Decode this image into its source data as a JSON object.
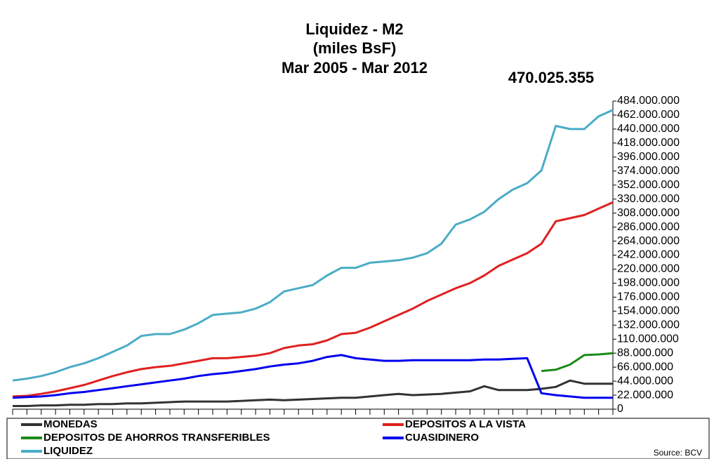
{
  "chart_data": {
    "type": "line",
    "title": "Liquidez - M2",
    "subtitle": [
      "(miles BsF)",
      "Mar 2005 - Mar 2012"
    ],
    "annotation": "470.025.355",
    "source": "Source: BCV",
    "categories": [
      null,
      null,
      null,
      null,
      null,
      null,
      null,
      null,
      null,
      null,
      null,
      null,
      null,
      null,
      null,
      null,
      null,
      null,
      null,
      null,
      null,
      null,
      null,
      null,
      null,
      null,
      null,
      null,
      null,
      null,
      null,
      null,
      null,
      null,
      null,
      null,
      null,
      null,
      null,
      null,
      null,
      null,
      null
    ],
    "series": [
      {
        "name": "MONEDAS",
        "color": "#333333",
        "values": [
          5000000,
          5000000,
          6000000,
          6000000,
          7000000,
          7000000,
          8000000,
          8000000,
          9000000,
          9000000,
          10000000,
          11000000,
          12000000,
          12000000,
          12000000,
          12000000,
          13000000,
          14000000,
          15000000,
          14000000,
          15000000,
          16000000,
          17000000,
          18000000,
          18000000,
          20000000,
          22000000,
          24000000,
          22000000,
          23000000,
          24000000,
          26000000,
          28000000,
          36000000,
          30000000,
          30000000,
          30000000,
          32000000,
          35000000,
          45000000,
          40000000,
          40000000,
          40000000
        ]
      },
      {
        "name": "DEPOSITOS A LA VISTA",
        "color": "#e02020",
        "values": [
          20000000,
          21000000,
          24000000,
          28000000,
          33000000,
          38000000,
          45000000,
          52000000,
          58000000,
          63000000,
          66000000,
          68000000,
          72000000,
          76000000,
          80000000,
          80000000,
          82000000,
          84000000,
          88000000,
          96000000,
          100000000,
          102000000,
          108000000,
          118000000,
          120000000,
          128000000,
          138000000,
          148000000,
          158000000,
          170000000,
          180000000,
          190000000,
          198000000,
          210000000,
          225000000,
          235000000,
          245000000,
          260000000,
          295000000,
          300000000,
          305000000,
          315000000,
          325000000
        ]
      },
      {
        "name": "DEPOSITOS DE AHORROS TRANSFERIBLES",
        "color": "#1a8a1a",
        "values": [
          null,
          null,
          null,
          null,
          null,
          null,
          null,
          null,
          null,
          null,
          null,
          null,
          null,
          null,
          null,
          null,
          null,
          null,
          null,
          null,
          null,
          null,
          null,
          null,
          null,
          null,
          null,
          null,
          null,
          null,
          null,
          null,
          null,
          null,
          null,
          null,
          null,
          60000000,
          62000000,
          70000000,
          85000000,
          86000000,
          88000000
        ]
      },
      {
        "name": "CUASIDINERO",
        "color": "#0000ee",
        "values": [
          18000000,
          19000000,
          20000000,
          22000000,
          25000000,
          27000000,
          30000000,
          33000000,
          36000000,
          39000000,
          42000000,
          45000000,
          48000000,
          52000000,
          55000000,
          57000000,
          60000000,
          63000000,
          67000000,
          70000000,
          72000000,
          76000000,
          82000000,
          85000000,
          80000000,
          78000000,
          76000000,
          76000000,
          77000000,
          77000000,
          77000000,
          77000000,
          77000000,
          78000000,
          78000000,
          79000000,
          80000000,
          25000000,
          22000000,
          20000000,
          18000000,
          18000000,
          18000000
        ]
      },
      {
        "name": "LIQUIDEZ",
        "color": "#4bacc6",
        "values": [
          45000000,
          48000000,
          52000000,
          58000000,
          66000000,
          72000000,
          80000000,
          90000000,
          100000000,
          115000000,
          118000000,
          118000000,
          125000000,
          135000000,
          148000000,
          150000000,
          152000000,
          158000000,
          168000000,
          185000000,
          190000000,
          195000000,
          210000000,
          222000000,
          222000000,
          230000000,
          232000000,
          234000000,
          238000000,
          245000000,
          260000000,
          290000000,
          298000000,
          310000000,
          330000000,
          345000000,
          355000000,
          375000000,
          445000000,
          440000000,
          440000000,
          460000000,
          470025355
        ]
      }
    ],
    "ylim": [
      0,
      484000000
    ],
    "yticks": [
      0,
      {
        "value": 22000000,
        "label": "22.000.000"
      },
      {
        "value": 44000000,
        "label": "44.000.000"
      },
      {
        "value": 66000000,
        "label": "66.000.000"
      },
      {
        "value": 88000000,
        "label": "88.000.000"
      },
      {
        "value": 110000000,
        "label": "110.000.000"
      },
      {
        "value": 132000000,
        "label": "132.000.000"
      },
      {
        "value": 154000000,
        "label": "154.000.000"
      },
      {
        "value": 176000000,
        "label": "176.000.000"
      },
      {
        "value": 198000000,
        "label": "198.000.000"
      },
      {
        "value": 220000000,
        "label": "220.000.000"
      },
      {
        "value": 242000000,
        "label": "242.000.000"
      },
      {
        "value": 264000000,
        "label": "264.000.000"
      },
      {
        "value": 286000000,
        "label": "286.000.000"
      },
      {
        "value": 308000000,
        "label": "308.000.000"
      },
      {
        "value": 330000000,
        "label": "330.000.000"
      },
      {
        "value": 352000000,
        "label": "352.000.000"
      },
      {
        "value": 374000000,
        "label": "374.000.000"
      },
      {
        "value": 396000000,
        "label": "396.000.000"
      },
      {
        "value": 418000000,
        "label": "418.000.000"
      },
      {
        "value": 440000000,
        "label": "440.000.000"
      },
      {
        "value": 462000000,
        "label": "462.000.000"
      },
      {
        "value": 484000000,
        "label": "484.000.000"
      }
    ],
    "grid": false
  }
}
